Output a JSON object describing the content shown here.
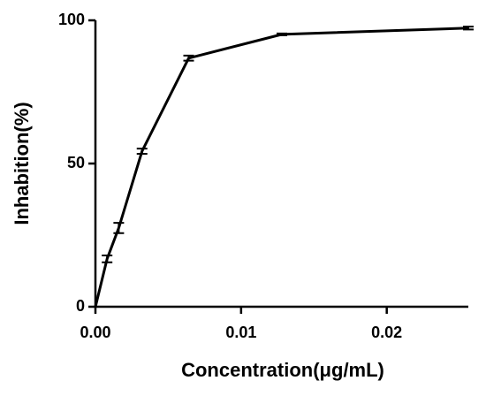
{
  "chart_data": {
    "type": "line",
    "xlabel": "Concentration(μg/mL)",
    "ylabel": "Inhabition(%)",
    "x": [
      0,
      0.0008,
      0.0016,
      0.0032,
      0.0064,
      0.0128,
      0.0256
    ],
    "series": [
      {
        "color": "#000000",
        "values": [
          0,
          16.7,
          27.5,
          54.3,
          86.8,
          95.1,
          97.3
        ],
        "errors": [
          0,
          1.2,
          1.8,
          0.9,
          0.9,
          0.3,
          0.5
        ]
      }
    ],
    "xlim": [
      0,
      0.0256
    ],
    "ylim": [
      0,
      100
    ],
    "xticks": [
      {
        "value": 0,
        "label": "0.00"
      },
      {
        "value": 0.01,
        "label": "0.01"
      },
      {
        "value": 0.02,
        "label": "0.02"
      }
    ],
    "yticks": [
      0,
      50,
      100
    ],
    "grid": false
  }
}
